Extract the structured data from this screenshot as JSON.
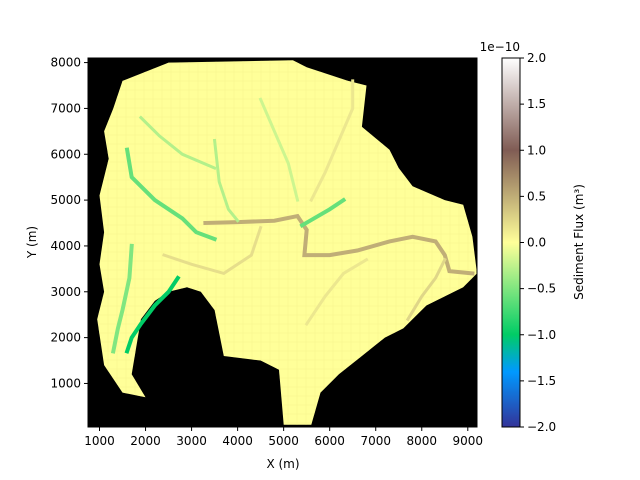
{
  "chart_data": {
    "type": "heatmap",
    "title": "",
    "xlabel": "X (m)",
    "ylabel": "Y (m)",
    "xlim": [
      750,
      9200
    ],
    "ylim": [
      50,
      8100
    ],
    "xticks": [
      1000,
      2000,
      3000,
      4000,
      5000,
      6000,
      7000,
      8000,
      9000
    ],
    "yticks": [
      1000,
      2000,
      3000,
      4000,
      5000,
      6000,
      7000,
      8000
    ],
    "background_color": "#000000",
    "grid": false,
    "domain_outline": [
      [
        1500,
        7600
      ],
      [
        2500,
        8000
      ],
      [
        5200,
        8050
      ],
      [
        5500,
        7900
      ],
      [
        6400,
        7600
      ],
      [
        6800,
        7500
      ],
      [
        6700,
        6600
      ],
      [
        7300,
        6100
      ],
      [
        7500,
        5700
      ],
      [
        7800,
        5300
      ],
      [
        8500,
        5000
      ],
      [
        8900,
        4900
      ],
      [
        9100,
        4200
      ],
      [
        9200,
        3400
      ],
      [
        8900,
        3100
      ],
      [
        8100,
        2700
      ],
      [
        7600,
        2200
      ],
      [
        7200,
        2000
      ],
      [
        6700,
        1600
      ],
      [
        6200,
        1200
      ],
      [
        5800,
        800
      ],
      [
        5600,
        100
      ],
      [
        5000,
        100
      ],
      [
        4900,
        1300
      ],
      [
        4500,
        1500
      ],
      [
        3700,
        1600
      ],
      [
        3500,
        2600
      ],
      [
        3200,
        3000
      ],
      [
        2900,
        3100
      ],
      [
        2500,
        3000
      ],
      [
        2200,
        2800
      ],
      [
        1900,
        2400
      ],
      [
        1700,
        1200
      ],
      [
        2000,
        700
      ],
      [
        1500,
        800
      ],
      [
        1100,
        1400
      ],
      [
        950,
        2400
      ],
      [
        1100,
        3000
      ],
      [
        1000,
        3600
      ],
      [
        1100,
        4300
      ],
      [
        1000,
        5100
      ],
      [
        1200,
        5900
      ],
      [
        1100,
        6500
      ],
      [
        1300,
        7000
      ]
    ],
    "channels": [
      {
        "value": 0.5,
        "points": [
          [
            3300,
            4500
          ],
          [
            4000,
            4520
          ],
          [
            4800,
            4550
          ],
          [
            5300,
            4650
          ],
          [
            5500,
            4350
          ],
          [
            5450,
            3800
          ],
          [
            6000,
            3800
          ],
          [
            6600,
            3900
          ],
          [
            7300,
            4100
          ],
          [
            7800,
            4200
          ],
          [
            8300,
            4100
          ],
          [
            8500,
            3800
          ],
          [
            8600,
            3450
          ],
          [
            9100,
            3400
          ]
        ]
      },
      {
        "value": 0.25,
        "points": [
          [
            8500,
            3700
          ],
          [
            8300,
            3300
          ],
          [
            8000,
            2900
          ],
          [
            7700,
            2400
          ]
        ]
      },
      {
        "value": -0.6,
        "points": [
          [
            5400,
            4450
          ],
          [
            6000,
            4800
          ],
          [
            6300,
            5000
          ]
        ]
      },
      {
        "value": -0.6,
        "points": [
          [
            1600,
            6100
          ],
          [
            1700,
            5500
          ],
          [
            2200,
            5000
          ],
          [
            2800,
            4600
          ],
          [
            3100,
            4300
          ],
          [
            3500,
            4150
          ]
        ]
      },
      {
        "value": -1.0,
        "points": [
          [
            1600,
            1700
          ],
          [
            1700,
            2000
          ],
          [
            1900,
            2300
          ],
          [
            2200,
            2700
          ],
          [
            2500,
            3000
          ],
          [
            2700,
            3300
          ]
        ]
      },
      {
        "value": -0.5,
        "points": [
          [
            1300,
            1700
          ],
          [
            1400,
            2200
          ],
          [
            1500,
            2600
          ],
          [
            1650,
            3300
          ],
          [
            1700,
            4000
          ]
        ]
      },
      {
        "value": -0.3,
        "points": [
          [
            3500,
            6300
          ],
          [
            3600,
            5400
          ],
          [
            3800,
            4800
          ],
          [
            4000,
            4550
          ]
        ]
      },
      {
        "value": -0.3,
        "points": [
          [
            1900,
            6800
          ],
          [
            2300,
            6400
          ],
          [
            2800,
            6000
          ],
          [
            3500,
            5700
          ]
        ]
      },
      {
        "value": 0.2,
        "points": [
          [
            2400,
            3800
          ],
          [
            3000,
            3600
          ],
          [
            3700,
            3400
          ],
          [
            4300,
            3800
          ],
          [
            4500,
            4400
          ]
        ]
      },
      {
        "value": 0.15,
        "points": [
          [
            5500,
            2300
          ],
          [
            5900,
            2900
          ],
          [
            6300,
            3400
          ],
          [
            6800,
            3700
          ]
        ]
      },
      {
        "value": -0.2,
        "points": [
          [
            4500,
            7200
          ],
          [
            4800,
            6500
          ],
          [
            5100,
            5800
          ],
          [
            5300,
            5000
          ]
        ]
      },
      {
        "value": 0.15,
        "points": [
          [
            6500,
            7600
          ],
          [
            6500,
            7000
          ],
          [
            6200,
            6300
          ],
          [
            5900,
            5600
          ],
          [
            5600,
            5000
          ]
        ]
      }
    ],
    "colorbar": {
      "label": "Sediment Flux ($m^3$)",
      "label_display": "Sediment Flux (m³)",
      "min": -2.0,
      "max": 2.0,
      "ticks": [
        "−2.0",
        "−1.5",
        "−1.0",
        "−0.5",
        "0.0",
        "0.5",
        "1.0",
        "1.5",
        "2.0"
      ],
      "tick_values": [
        -2.0,
        -1.5,
        -1.0,
        -0.5,
        0.0,
        0.5,
        1.0,
        1.5,
        2.0
      ],
      "scale_label": "1e−10",
      "colormap": "terrain",
      "stops": [
        [
          0.0,
          "#333399"
        ],
        [
          0.15,
          "#0099ff"
        ],
        [
          0.25,
          "#00cc66"
        ],
        [
          0.5,
          "#ffff99"
        ],
        [
          0.75,
          "#805c54"
        ],
        [
          1.0,
          "#ffffff"
        ]
      ]
    }
  }
}
